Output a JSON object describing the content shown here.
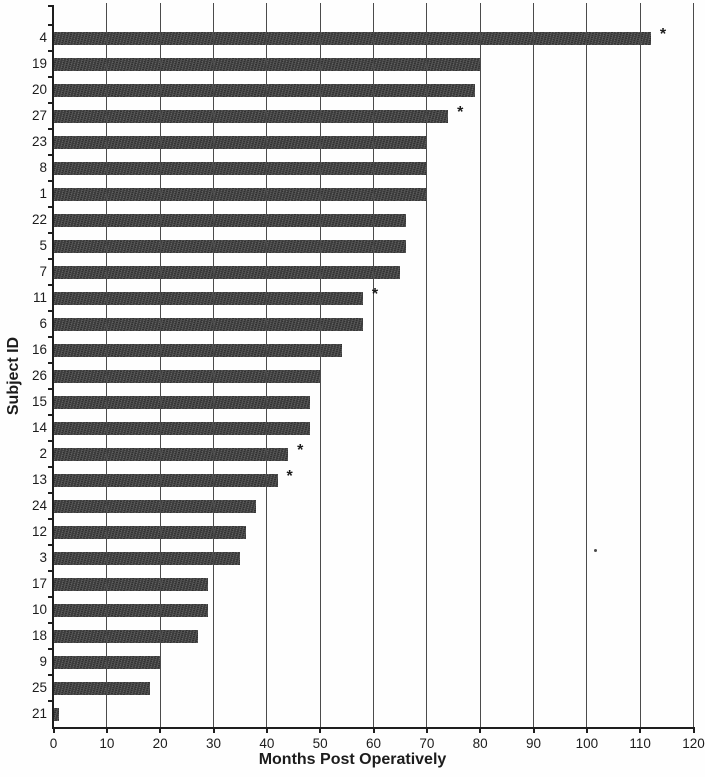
{
  "chart_data": {
    "type": "bar",
    "orientation": "horizontal",
    "title": "",
    "xlabel": "Months Post Operatively",
    "ylabel": "Subject ID",
    "xlim": [
      0,
      120
    ],
    "xticks": [
      0,
      10,
      20,
      30,
      40,
      50,
      60,
      70,
      80,
      90,
      100,
      110,
      120
    ],
    "grid": "vertical gridlines at every x tick, drawn over bars",
    "legend": "none",
    "star_marker": "*",
    "categories": [
      "4",
      "19",
      "20",
      "27",
      "23",
      "8",
      "1",
      "22",
      "5",
      "7",
      "11",
      "6",
      "16",
      "26",
      "15",
      "14",
      "2",
      "13",
      "24",
      "12",
      "3",
      "17",
      "10",
      "18",
      "9",
      "25",
      "21"
    ],
    "values": [
      112,
      80,
      79,
      74,
      70,
      70,
      70,
      66,
      66,
      65,
      58,
      58,
      54,
      50,
      48,
      48,
      44,
      42,
      38,
      36,
      35,
      29,
      29,
      27,
      20,
      18,
      1
    ],
    "star_flags": [
      true,
      false,
      false,
      true,
      false,
      false,
      false,
      false,
      false,
      false,
      true,
      false,
      false,
      false,
      false,
      false,
      true,
      true,
      false,
      false,
      false,
      false,
      false,
      false,
      false,
      false,
      false
    ],
    "starred_subjects": [
      "4",
      "27",
      "11",
      "2",
      "13"
    ],
    "colors": {
      "bar": "#3e3e3e",
      "grid": "#4b4b4b",
      "axis": "#1e1e1e",
      "text": "#1c1c1c"
    }
  }
}
